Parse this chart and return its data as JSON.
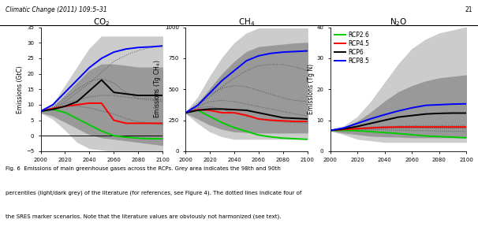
{
  "years": [
    2000,
    2010,
    2020,
    2030,
    2040,
    2050,
    2060,
    2070,
    2080,
    2090,
    2100
  ],
  "header_text": "Climatic Change (2011) 109:5–31",
  "page_num": "21",
  "co2": {
    "title": "CO$_2$",
    "ylabel": "Emissions (GtC)",
    "ylim": [
      -5,
      35
    ],
    "yticks": [
      -5,
      0,
      5,
      10,
      15,
      20,
      25,
      30,
      35
    ],
    "rcp26": [
      7.9,
      8.5,
      7.5,
      5.5,
      3.5,
      1.5,
      0.0,
      -0.5,
      -0.8,
      -1.0,
      -1.0
    ],
    "rcp45": [
      7.9,
      8.8,
      9.5,
      10.0,
      10.5,
      10.5,
      5.0,
      4.0,
      4.0,
      4.0,
      4.0
    ],
    "rcp6": [
      7.9,
      8.5,
      9.5,
      11.0,
      14.5,
      18.0,
      14.0,
      13.5,
      13.0,
      13.0,
      13.0
    ],
    "rcp85": [
      7.9,
      10.0,
      14.0,
      18.0,
      22.0,
      25.0,
      27.0,
      28.0,
      28.5,
      28.7,
      29.0
    ],
    "lit_98_upper": [
      7.8,
      10.0,
      16.0,
      22.0,
      28.0,
      32.0,
      32.0,
      32.0,
      32.0,
      32.0,
      32.0
    ],
    "lit_98_lower": [
      7.5,
      5.5,
      2.0,
      -2.0,
      -4.0,
      -4.5,
      -5.0,
      -5.0,
      -5.0,
      -5.0,
      -5.0
    ],
    "lit_90_upper": [
      7.8,
      9.0,
      13.0,
      17.0,
      21.0,
      23.0,
      23.0,
      22.5,
      22.0,
      22.0,
      22.0
    ],
    "lit_90_lower": [
      7.6,
      6.5,
      4.5,
      2.5,
      0.5,
      -0.5,
      -1.0,
      -1.5,
      -2.0,
      -2.5,
      -3.0
    ],
    "sres_a1b": [
      7.9,
      9.5,
      12.0,
      15.0,
      17.5,
      18.5,
      17.0,
      14.0,
      12.0,
      11.5,
      11.0
    ],
    "sres_a2": [
      7.9,
      9.0,
      11.0,
      14.0,
      17.0,
      20.5,
      24.0,
      26.0,
      27.5,
      28.5,
      29.0
    ],
    "sres_b1": [
      7.9,
      9.0,
      9.5,
      9.5,
      9.0,
      8.0,
      7.0,
      5.5,
      4.5,
      4.0,
      3.5
    ],
    "sres_b2": [
      7.9,
      9.0,
      10.5,
      11.5,
      12.5,
      13.0,
      13.0,
      12.5,
      12.0,
      12.0,
      11.5
    ],
    "hline_y": 0
  },
  "ch4": {
    "title": "CH$_4$",
    "ylabel": "Emissions (Tg CH$_4$)",
    "ylim": [
      0,
      1000
    ],
    "yticks": [
      0,
      250,
      500,
      750,
      1000
    ],
    "rcp26": [
      310,
      330,
      280,
      230,
      190,
      160,
      130,
      115,
      105,
      100,
      95
    ],
    "rcp45": [
      310,
      335,
      330,
      310,
      310,
      290,
      260,
      250,
      245,
      240,
      240
    ],
    "rcp6": [
      310,
      330,
      340,
      340,
      335,
      330,
      310,
      290,
      270,
      265,
      260
    ],
    "rcp85": [
      310,
      370,
      470,
      570,
      650,
      730,
      770,
      790,
      800,
      805,
      810
    ],
    "lit_98_upper": [
      310,
      430,
      600,
      750,
      870,
      950,
      990,
      990,
      990,
      990,
      990
    ],
    "lit_98_lower": [
      310,
      230,
      160,
      120,
      100,
      100,
      100,
      100,
      100,
      100,
      100
    ],
    "lit_90_upper": [
      310,
      380,
      500,
      620,
      720,
      800,
      840,
      850,
      860,
      870,
      875
    ],
    "lit_90_lower": [
      310,
      265,
      215,
      180,
      160,
      155,
      150,
      150,
      150,
      150,
      150
    ],
    "sres_a1b": [
      310,
      390,
      460,
      510,
      530,
      520,
      490,
      460,
      430,
      410,
      400
    ],
    "sres_a2": [
      310,
      370,
      440,
      520,
      590,
      650,
      690,
      700,
      700,
      680,
      650
    ],
    "sres_b1": [
      310,
      350,
      360,
      340,
      310,
      280,
      260,
      245,
      235,
      230,
      225
    ],
    "sres_b2": [
      310,
      360,
      400,
      410,
      400,
      380,
      360,
      340,
      320,
      300,
      285
    ]
  },
  "n2o": {
    "title": "N$_2$O",
    "ylabel": "Emissions (Tg N)",
    "ylim": [
      0,
      40
    ],
    "yticks": [
      0,
      10,
      20,
      30,
      40
    ],
    "rcp26": [
      6.7,
      6.7,
      6.6,
      6.3,
      6.0,
      5.7,
      5.3,
      4.9,
      4.7,
      4.5,
      4.3
    ],
    "rcp45": [
      6.7,
      7.0,
      7.3,
      7.5,
      7.7,
      7.8,
      7.8,
      7.8,
      7.8,
      7.8,
      7.8
    ],
    "rcp6": [
      6.7,
      7.2,
      8.0,
      9.0,
      10.0,
      11.0,
      11.5,
      12.0,
      12.2,
      12.3,
      12.3
    ],
    "rcp85": [
      6.7,
      7.5,
      9.0,
      10.5,
      11.8,
      13.0,
      14.0,
      14.8,
      15.0,
      15.2,
      15.3
    ],
    "lit_98_upper": [
      6.7,
      8.0,
      11.0,
      16.0,
      22.0,
      28.0,
      33.0,
      36.0,
      38.0,
      39.0,
      40.0
    ],
    "lit_98_lower": [
      6.7,
      5.5,
      4.0,
      3.5,
      3.0,
      3.0,
      3.0,
      3.0,
      3.0,
      3.0,
      3.0
    ],
    "lit_90_upper": [
      6.7,
      7.5,
      9.5,
      12.5,
      16.0,
      19.0,
      21.0,
      22.5,
      23.5,
      24.0,
      24.5
    ],
    "lit_90_lower": [
      6.7,
      6.0,
      5.5,
      5.0,
      4.8,
      4.7,
      4.5,
      4.5,
      4.5,
      4.5,
      4.5
    ],
    "sres_a1b": [
      6.7,
      7.0,
      7.2,
      7.4,
      7.5,
      7.5,
      7.5,
      7.5,
      7.4,
      7.4,
      7.4
    ],
    "sres_a2": [
      6.7,
      7.1,
      7.5,
      7.8,
      8.0,
      8.1,
      8.2,
      8.3,
      8.3,
      8.3,
      8.3
    ],
    "sres_b1": [
      6.7,
      6.9,
      7.0,
      7.0,
      6.9,
      6.8,
      6.7,
      6.6,
      6.5,
      6.4,
      6.4
    ],
    "sres_b2": [
      6.7,
      7.0,
      7.2,
      7.3,
      7.4,
      7.5,
      7.5,
      7.5,
      7.5,
      7.5,
      7.5
    ]
  },
  "colors": {
    "rcp26": "#00CC00",
    "rcp45": "#FF0000",
    "rcp6": "#000000",
    "rcp85": "#0000FF",
    "lit_98": "#CCCCCC",
    "lit_90": "#999999",
    "sres": "#555555"
  },
  "caption_bold": "Fig. 6",
  "caption_normal": "  Emissions of main greenhouse gases across the RCPs. Grey area indicates the 98th and 90th\npercentiles (",
  "caption_italic": "light/dark grey",
  "caption_end": ") of the literature (for references, see Figure 4). The dotted lines indicate four of\nthe SRES marker scenarios. Note that the literature values are obviously not harmonized (see text)."
}
